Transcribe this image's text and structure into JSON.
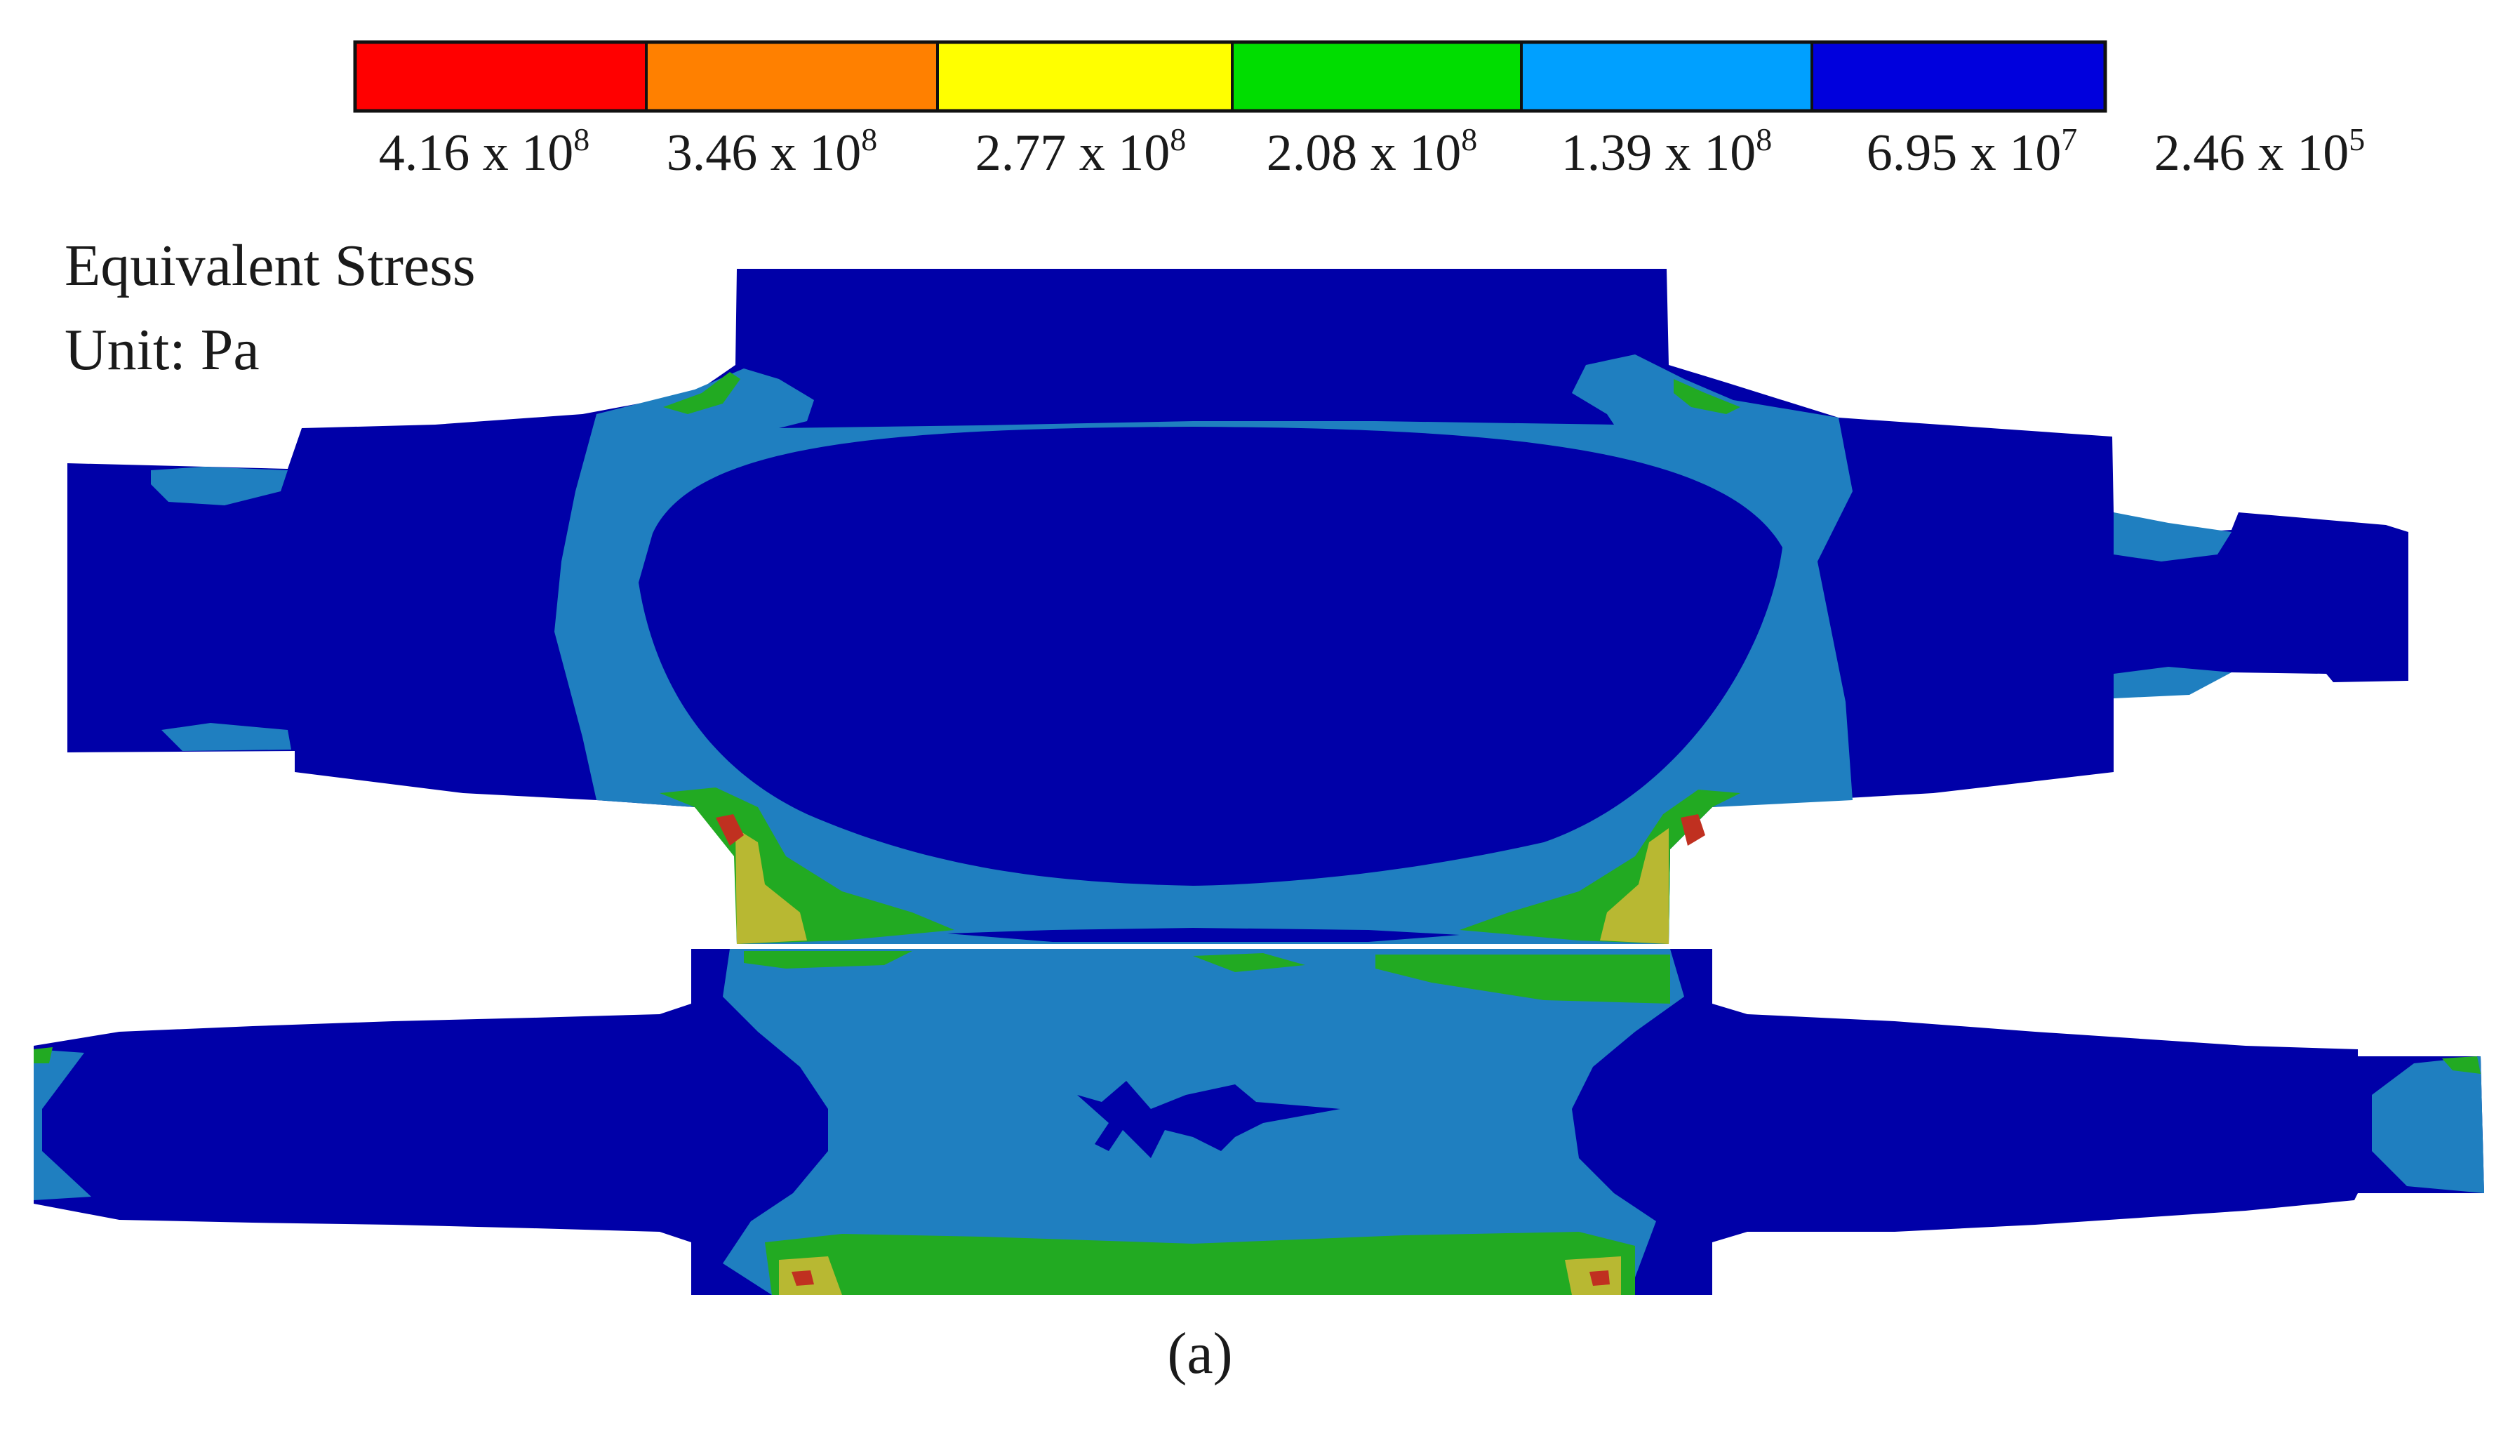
{
  "legend": {
    "colors": [
      "#ff0000",
      "#ff8000",
      "#ffff00",
      "#00dd00",
      "#00a0ff",
      "#0000dd"
    ],
    "labels": [
      {
        "base": "4.16 x 10",
        "exp": "8"
      },
      {
        "base": "3.46 x 10",
        "exp": "8"
      },
      {
        "base": "2.77 x 10",
        "exp": "8"
      },
      {
        "base": "2.08 x 10",
        "exp": "8"
      },
      {
        "base": "1.39 x 10",
        "exp": "8"
      },
      {
        "base": "6.95 x 10",
        "exp": "7"
      },
      {
        "base": "2.46 x 10",
        "exp": "5"
      }
    ]
  },
  "title": {
    "line1": "Equivalent Stress",
    "line2": "Unit: Pa"
  },
  "caption": "(a)",
  "contour_colors": {
    "dark_blue": "#0000a8",
    "light_blue": "#1f7fc0",
    "green": "#22aa22",
    "yellow": "#b8b832",
    "red": "#c03020"
  }
}
